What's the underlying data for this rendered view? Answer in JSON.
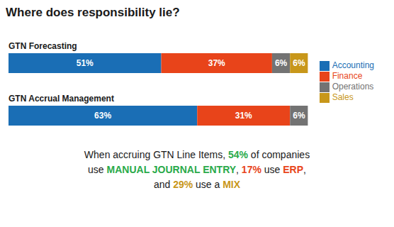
{
  "chart_data": {
    "type": "bar",
    "title": "Where does responsibility lie?",
    "orientation": "horizontal",
    "stacked": true,
    "data_labels": true,
    "grid": false,
    "tick_labels": false,
    "legend": "right",
    "categories": [
      "GTN Forecasting",
      "GTN Accrual Management"
    ],
    "xlim": [
      0,
      100
    ],
    "series": [
      {
        "name": "Accounting",
        "color": "#1a6eb5",
        "values": [
          51,
          63
        ],
        "value_labels": [
          "51%",
          "63%"
        ]
      },
      {
        "name": "Finance",
        "color": "#e8441a",
        "values": [
          37,
          31
        ],
        "value_labels": [
          "37%",
          "31%"
        ]
      },
      {
        "name": "Operations",
        "color": "#737373",
        "values": [
          6,
          6
        ],
        "value_labels": [
          "6%",
          "6%"
        ]
      },
      {
        "name": "Sales",
        "color": "#c8971a",
        "values": [
          6,
          0
        ],
        "value_labels": [
          "6%",
          null
        ]
      }
    ],
    "annotations": [
      [
        {
          "text": "When accruing GTN Line Items, "
        },
        {
          "text": "54%",
          "color": "#2aaa4a"
        },
        {
          "text": " of companies"
        }
      ],
      [
        {
          "text": "use "
        },
        {
          "text": "MANUAL JOURNAL ENTRY",
          "color": "#2aaa4a"
        },
        {
          "text": ", "
        },
        {
          "text": "17%",
          "color": "#e8441a"
        },
        {
          "text": " use "
        },
        {
          "text": "ERP",
          "color": "#e8441a"
        },
        {
          "text": ","
        }
      ],
      [
        {
          "text": "and "
        },
        {
          "text": "29%",
          "color": "#c8971a"
        },
        {
          "text": " use a "
        },
        {
          "text": "MIX",
          "color": "#c8971a"
        }
      ]
    ]
  }
}
